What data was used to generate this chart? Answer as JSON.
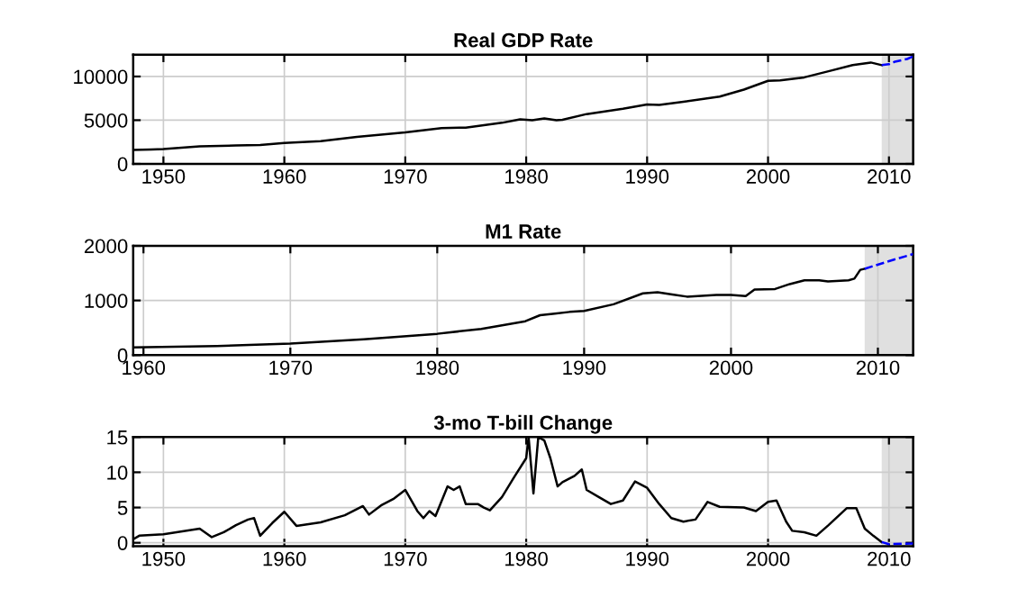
{
  "chart_data": [
    {
      "type": "line",
      "title": "Real GDP Rate",
      "xlim": [
        1947.5,
        2012
      ],
      "xticks": [
        1950,
        1960,
        1970,
        1980,
        1990,
        2000,
        2010
      ],
      "ylim": [
        0,
        12500
      ],
      "yticks": [
        0,
        5000,
        10000
      ],
      "grid": true,
      "bands": [
        {
          "axis": "x",
          "from": 2009.4,
          "to": 2012,
          "color": "#e0e0e0"
        }
      ],
      "series": [
        {
          "color": "#000000",
          "line_style": "solid",
          "x": [
            1947.5,
            1949,
            1950,
            1953,
            1956,
            1958,
            1960,
            1963,
            1966,
            1970,
            1973,
            1975,
            1978,
            1979.5,
            1980.5,
            1981.5,
            1982.5,
            1983,
            1985,
            1988,
            1990,
            1991,
            1993,
            1996,
            1998,
            2000,
            2001,
            2003,
            2005,
            2007,
            2008.5,
            2009.4
          ],
          "values": [
            1600,
            1650,
            1700,
            2000,
            2100,
            2150,
            2400,
            2600,
            3100,
            3600,
            4100,
            4150,
            4700,
            5100,
            5000,
            5200,
            5000,
            5050,
            5700,
            6300,
            6800,
            6750,
            7100,
            7700,
            8500,
            9500,
            9550,
            9900,
            10600,
            11300,
            11600,
            11300
          ]
        },
        {
          "color": "#0000ff",
          "line_style": "dashed",
          "x": [
            2009.4,
            2010,
            2010.5,
            2011.5,
            2012
          ],
          "values": [
            11300,
            11400,
            11700,
            12000,
            12300
          ]
        }
      ]
    },
    {
      "type": "line",
      "title": "M1 Rate",
      "xlim": [
        1959.3,
        2012.4
      ],
      "xticks": [
        1960,
        1970,
        1980,
        1990,
        2000,
        2010
      ],
      "ylim": [
        0,
        2000
      ],
      "yticks": [
        0,
        1000,
        2000
      ],
      "grid": true,
      "bands": [
        {
          "axis": "x",
          "from": 2009.1,
          "to": 2012.4,
          "color": "#e0e0e0"
        }
      ],
      "series": [
        {
          "color": "#000000",
          "line_style": "solid",
          "x": [
            1959.3,
            1965,
            1970,
            1975,
            1980,
            1983,
            1986,
            1987,
            1988,
            1989,
            1990,
            1992,
            1994,
            1995,
            1996,
            1997,
            1999,
            2000,
            2001,
            2001.6,
            2003,
            2004,
            2005,
            2006,
            2006.6,
            2008,
            2008.4,
            2008.8,
            2009.1
          ],
          "values": [
            140,
            165,
            210,
            290,
            390,
            480,
            620,
            730,
            760,
            790,
            810,
            930,
            1130,
            1150,
            1110,
            1070,
            1100,
            1100,
            1080,
            1200,
            1210,
            1300,
            1370,
            1370,
            1350,
            1370,
            1400,
            1560,
            1580
          ]
        },
        {
          "color": "#0000ff",
          "line_style": "dashed",
          "x": [
            2009.1,
            2011,
            2012.4
          ],
          "values": [
            1580,
            1740,
            1850
          ]
        }
      ]
    },
    {
      "type": "line",
      "title": "3-mo T-bill Change",
      "xlim": [
        1947.5,
        2012
      ],
      "xticks": [
        1950,
        1960,
        1970,
        1980,
        1990,
        2000,
        2010
      ],
      "ylim": [
        -0.5,
        15
      ],
      "yticks": [
        0,
        5,
        10,
        15
      ],
      "grid": true,
      "bands": [
        {
          "axis": "x",
          "from": 2009.4,
          "to": 2012,
          "color": "#e0e0e0"
        }
      ],
      "series": [
        {
          "color": "#000000",
          "line_style": "solid",
          "x": [
            1947.5,
            1948,
            1950,
            1953,
            1954,
            1955,
            1956,
            1957,
            1957.5,
            1958,
            1959,
            1960,
            1961,
            1963,
            1965,
            1966.5,
            1967,
            1968,
            1969,
            1970,
            1971,
            1971.5,
            1972,
            1972.5,
            1973.5,
            1974,
            1974.5,
            1975,
            1976,
            1976.5,
            1977,
            1978,
            1979,
            1980,
            1980.2,
            1980.6,
            1981,
            1981.5,
            1982,
            1982.6,
            1983,
            1984,
            1984.6,
            1985,
            1986,
            1987,
            1988,
            1989,
            1990,
            1991,
            1992,
            1993,
            1994,
            1995,
            1996,
            1998,
            1999,
            2000,
            2000.7,
            2001.5,
            2002,
            2003,
            2004,
            2005,
            2006.5,
            2007.3,
            2008,
            2008.7,
            2009.4
          ],
          "values": [
            0.5,
            1.0,
            1.2,
            2.0,
            0.8,
            1.5,
            2.5,
            3.3,
            3.5,
            1.0,
            2.8,
            4.4,
            2.4,
            2.9,
            3.9,
            5.2,
            4.0,
            5.3,
            6.2,
            7.5,
            4.5,
            3.5,
            4.5,
            3.8,
            8.0,
            7.5,
            8.0,
            5.5,
            5.5,
            5.0,
            4.6,
            6.5,
            9.3,
            12.0,
            15.0,
            7.0,
            15.0,
            14.5,
            12.0,
            8.0,
            8.6,
            9.5,
            10.4,
            7.5,
            6.5,
            5.5,
            6.0,
            8.7,
            7.8,
            5.5,
            3.5,
            3.0,
            3.3,
            5.8,
            5.1,
            5.0,
            4.5,
            5.8,
            6.0,
            3.0,
            1.7,
            1.5,
            1.0,
            2.5,
            4.9,
            4.9,
            2.0,
            1.0,
            0.1
          ]
        },
        {
          "color": "#0000ff",
          "line_style": "dashed",
          "x": [
            2009.4,
            2010,
            2012
          ],
          "values": [
            0.1,
            -0.2,
            -0.1
          ]
        }
      ]
    }
  ]
}
